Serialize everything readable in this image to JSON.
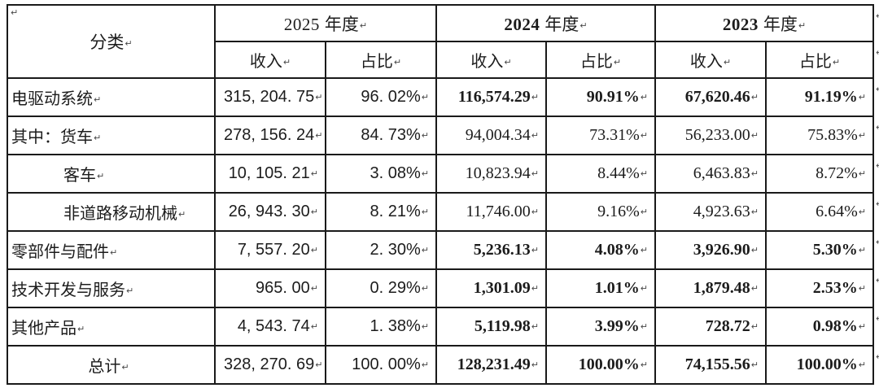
{
  "table": {
    "corner_label": "分类",
    "year_groups": [
      {
        "year": "2025",
        "suffix": "年度"
      },
      {
        "year": "2024",
        "suffix": "年度"
      },
      {
        "year": "2023",
        "suffix": "年度"
      }
    ],
    "sub_headers": [
      "收入",
      "占比"
    ],
    "rows": [
      {
        "label": "电驱动系统",
        "values": [
          "315, 204. 75",
          "96. 02%",
          "116,574.29",
          "90.91%",
          "67,620.46",
          "91.19%"
        ]
      },
      {
        "label": "其中：货车",
        "values": [
          "278, 156. 24",
          "84. 73%",
          "94,004.34",
          "73.31%",
          "56,233.00",
          "75.83%"
        ]
      },
      {
        "label": "客车",
        "values": [
          "10, 105. 21",
          "3. 08%",
          "10,823.94",
          "8.44%",
          "6,463.83",
          "8.72%"
        ]
      },
      {
        "label": "非道路移动机械",
        "values": [
          "26, 943. 30",
          "8. 21%",
          "11,746.00",
          "9.16%",
          "4,923.63",
          "6.64%"
        ]
      },
      {
        "label": "零部件与配件",
        "values": [
          "7, 557. 20",
          "2. 30%",
          "5,236.13",
          "4.08%",
          "3,926.90",
          "5.30%"
        ]
      },
      {
        "label": "技术开发与服务",
        "values": [
          "965. 00",
          "0. 29%",
          "1,301.09",
          "1.01%",
          "1,879.48",
          "2.53%"
        ]
      },
      {
        "label": "其他产品",
        "values": [
          "4, 543. 74",
          "1. 38%",
          "5,119.98",
          "3.99%",
          "728.72",
          "0.98%"
        ]
      },
      {
        "label": "总计",
        "values": [
          "328, 270. 69",
          "100. 00%",
          "128,231.49",
          "100.00%",
          "74,155.56",
          "100.00%"
        ]
      }
    ],
    "marks": {
      "cell_end": "↵",
      "row_end": "↵"
    }
  }
}
